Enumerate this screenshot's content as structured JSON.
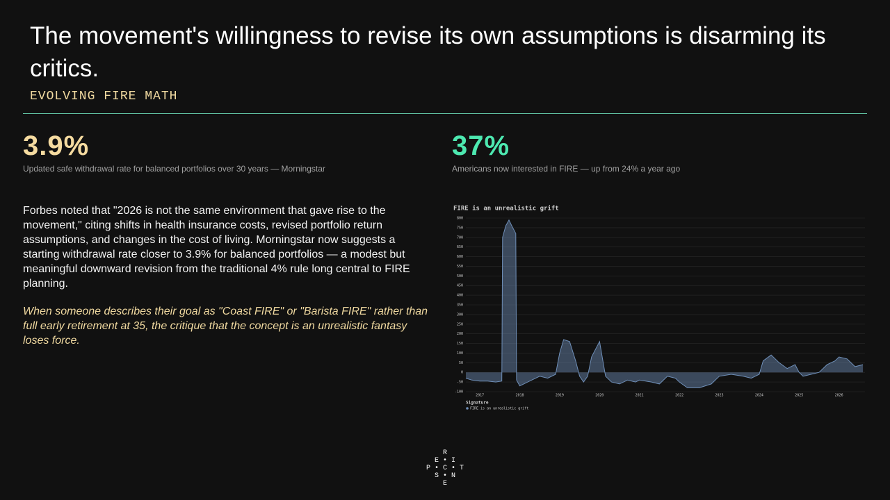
{
  "header": {
    "title": "The movement's willingness to revise its own assumptions is disarming its critics.",
    "kicker": "EVOLVING FIRE MATH"
  },
  "stats": [
    {
      "value": "3.9%",
      "caption": "Updated safe withdrawal rate for balanced portfolios over 30 years — Morningstar"
    },
    {
      "value": "37%",
      "caption": "Americans now interested in FIRE — up from 24% a year ago"
    }
  ],
  "body": {
    "paragraph": "Forbes noted that \"2026 is not the same environment that gave rise to the movement,\" citing shifts in health insurance costs, revised portfolio return assumptions, and changes in the cost of living. Morningstar now suggests a starting withdrawal rate closer to 3.9% for balanced portfolios — a modest but meaningful downward revision from the traditional 4% rule long central to FIRE planning.",
    "quote": "When someone describes their goal as \"Coast FIRE\" or \"Barista FIRE\" rather than full early retirement at 35, the critique that the concept is an unrealistic fantasy loses force."
  },
  "logo": [
    "R",
    "E",
    "I",
    "P",
    "C",
    "T",
    "S",
    "N",
    "E"
  ],
  "chart_data": {
    "type": "area",
    "title": "FIRE is an unrealistic grift",
    "legend_title": "Signature",
    "xlim": [
      2016.65,
      2026.65
    ],
    "xticks": [
      2017,
      2018,
      2019,
      2020,
      2021,
      2022,
      2023,
      2024,
      2025,
      2026
    ],
    "ylim": [
      -100,
      800
    ],
    "yticks": [
      -100,
      -50,
      0,
      50,
      100,
      150,
      200,
      250,
      300,
      350,
      400,
      450,
      500,
      550,
      600,
      650,
      700,
      750,
      800
    ],
    "grid": true,
    "series": [
      {
        "name": "FIRE is an unrealistic grift",
        "color": "#6f8fb8",
        "x": [
          2016.65,
          2016.8,
          2017.0,
          2017.2,
          2017.4,
          2017.55,
          2017.57,
          2017.65,
          2017.73,
          2017.8,
          2017.9,
          2017.92,
          2018.0,
          2018.1,
          2018.3,
          2018.5,
          2018.7,
          2018.9,
          2019.0,
          2019.1,
          2019.25,
          2019.4,
          2019.5,
          2019.6,
          2019.7,
          2019.8,
          2019.95,
          2020.0,
          2020.1,
          2020.15,
          2020.3,
          2020.5,
          2020.7,
          2020.9,
          2021.0,
          2021.3,
          2021.5,
          2021.7,
          2021.9,
          2022.0,
          2022.2,
          2022.5,
          2022.8,
          2023.0,
          2023.3,
          2023.6,
          2023.8,
          2024.0,
          2024.1,
          2024.3,
          2024.5,
          2024.7,
          2024.9,
          2025.0,
          2025.1,
          2025.3,
          2025.5,
          2025.7,
          2025.9,
          2026.0,
          2026.2,
          2026.4,
          2026.6
        ],
        "values": [
          -30,
          -40,
          -45,
          -45,
          -50,
          -45,
          700,
          760,
          790,
          760,
          720,
          -40,
          -70,
          -60,
          -40,
          -20,
          -30,
          -10,
          100,
          170,
          160,
          60,
          -20,
          -50,
          -20,
          80,
          140,
          160,
          40,
          -20,
          -50,
          -60,
          -40,
          -50,
          -40,
          -50,
          -60,
          -20,
          -30,
          -50,
          -80,
          -80,
          -60,
          -20,
          -10,
          -20,
          -30,
          -10,
          60,
          90,
          50,
          20,
          40,
          0,
          -20,
          -10,
          0,
          40,
          60,
          80,
          70,
          30,
          40
        ]
      }
    ]
  }
}
